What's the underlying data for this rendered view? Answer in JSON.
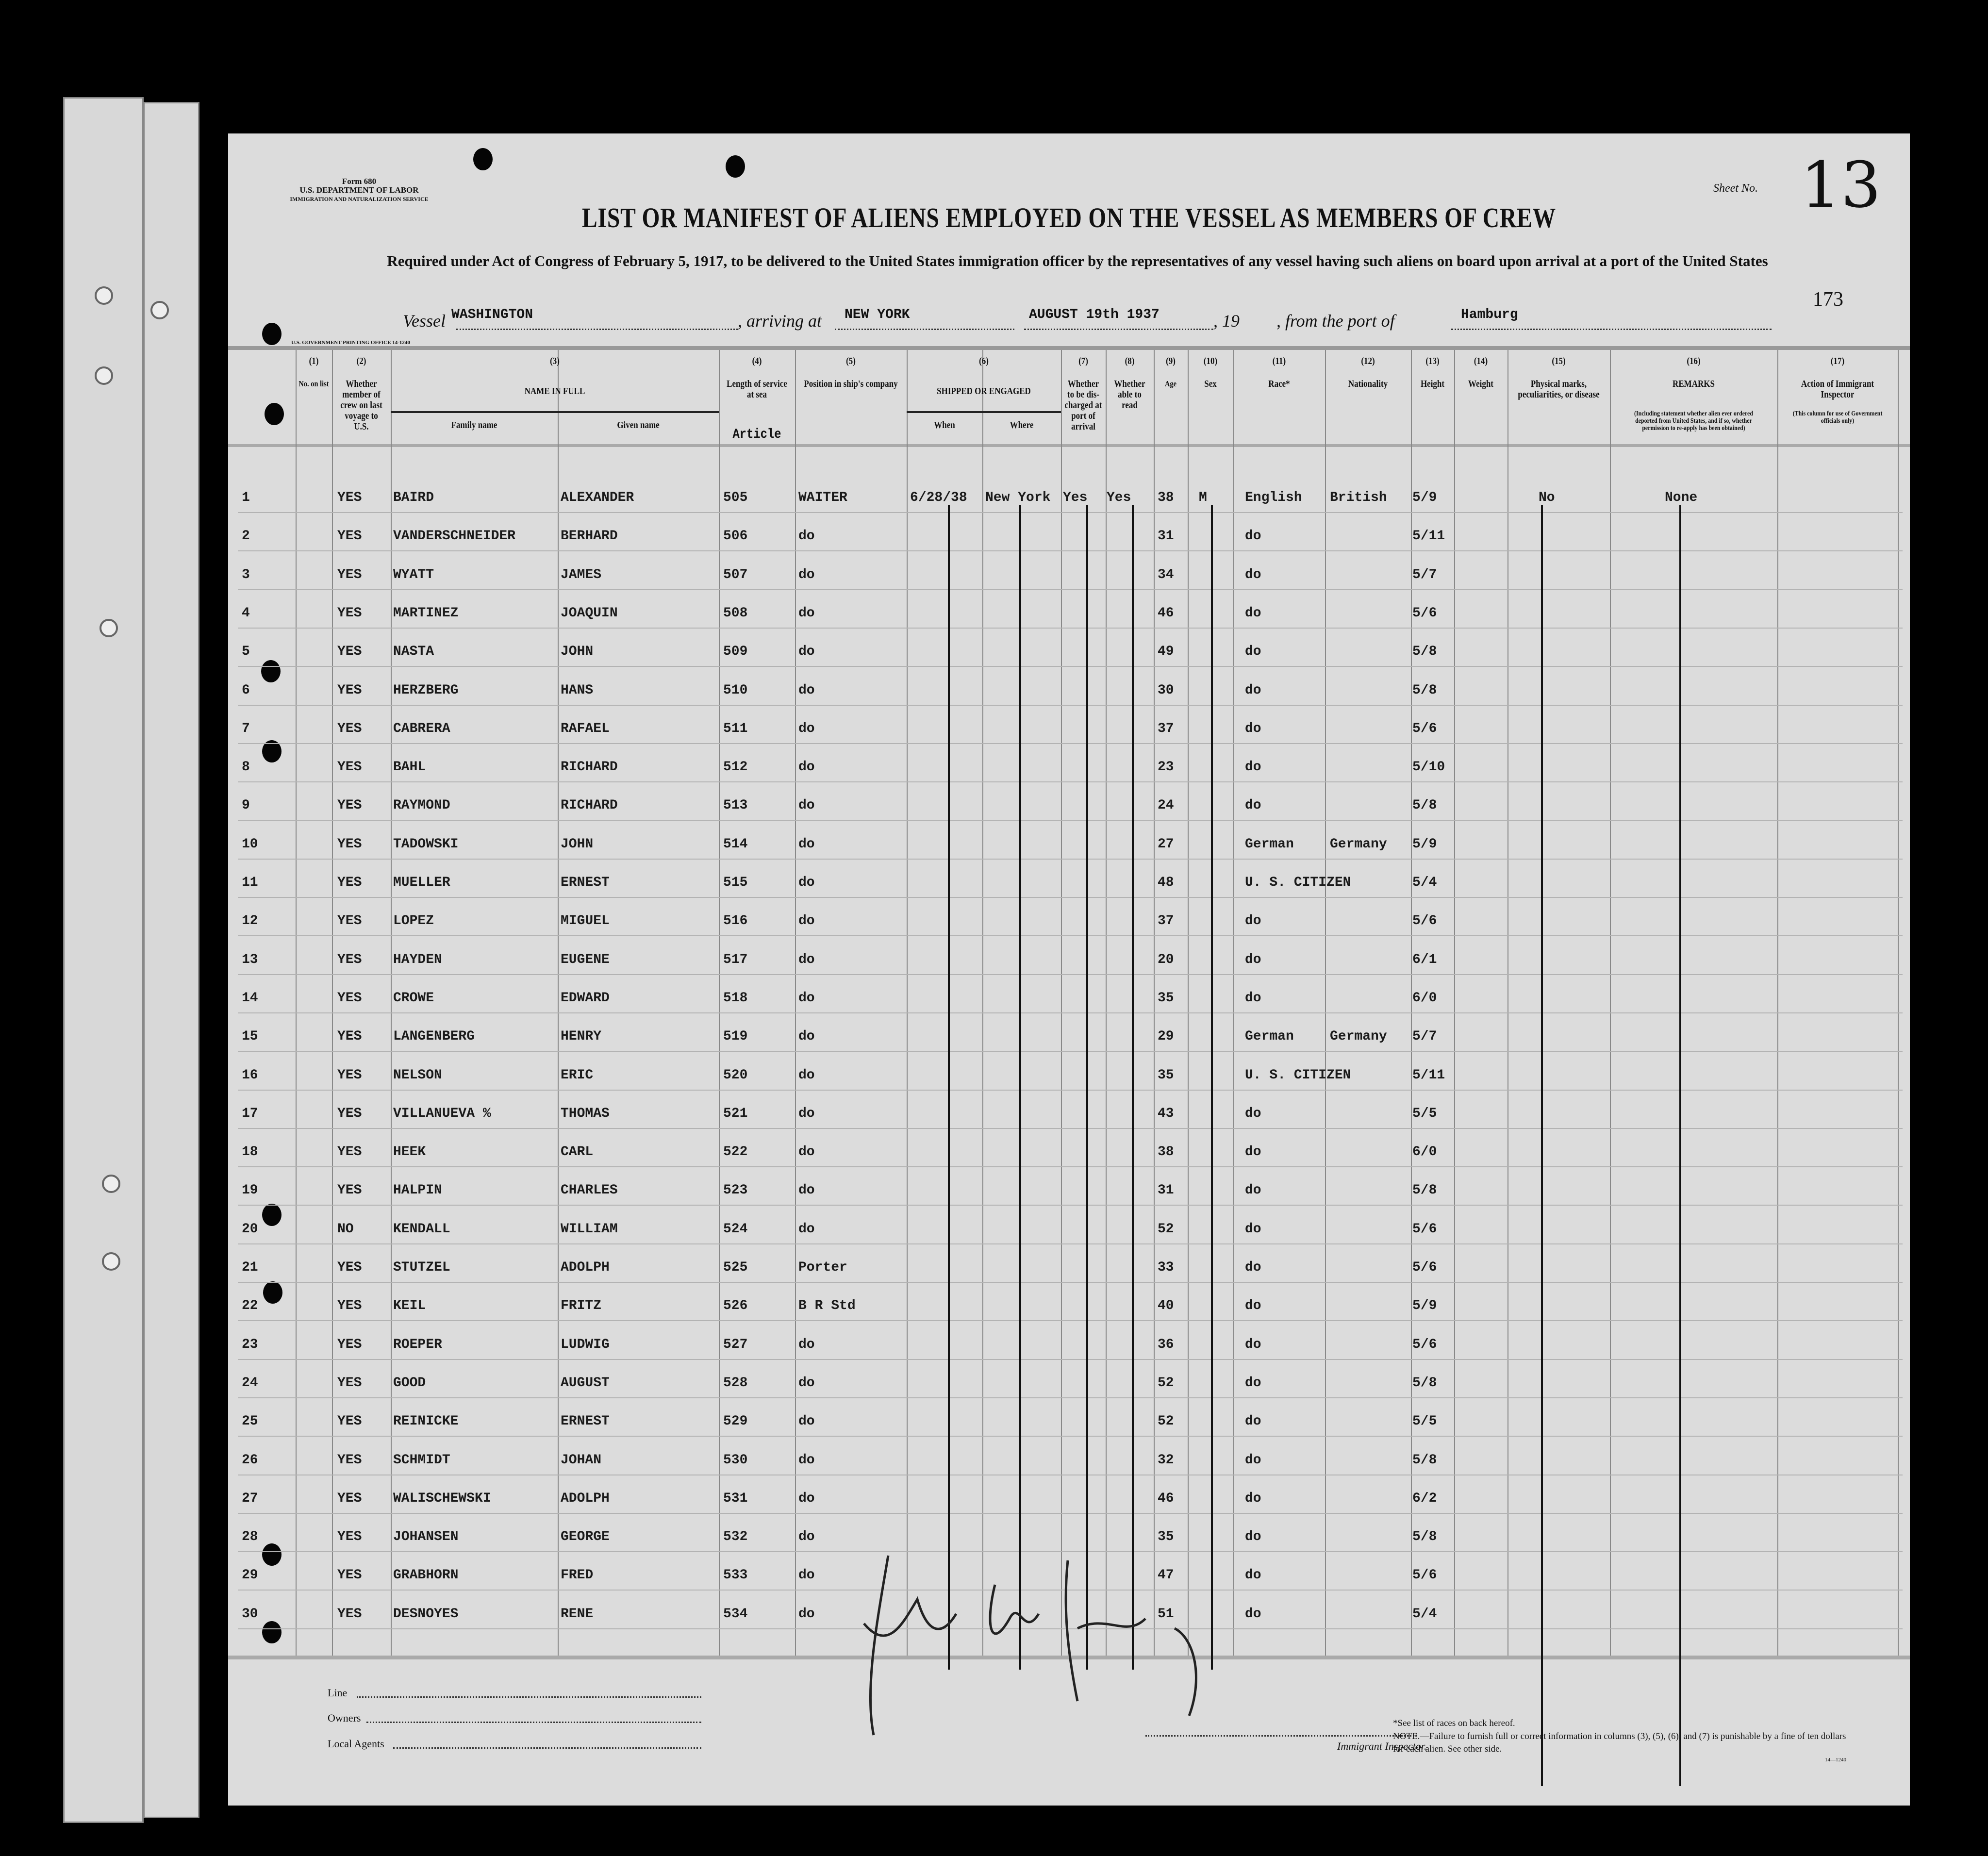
{
  "form": {
    "form_no": "Form 680",
    "department": "U.S. DEPARTMENT OF LABOR",
    "service": "IMMIGRATION AND NATURALIZATION SERVICE",
    "printing_office": "U.S. GOVERNMENT PRINTING OFFICE   14-1240",
    "title": "LIST OR MANIFEST OF ALIENS EMPLOYED ON THE VESSEL AS MEMBERS OF CREW",
    "subtitle": "Required under Act of Congress of February 5, 1917, to be delivered to the United States immigration officer by the representatives of any vessel having such aliens on board upon arrival at a port of the United States",
    "sheet_label": "Sheet No.",
    "sheet_no": "13",
    "stamp_no": "173"
  },
  "voyage": {
    "vessel_label": "Vessel",
    "vessel": "WASHINGTON",
    "arriving_label": ", arriving at",
    "arriving": "NEW YORK",
    "date": "AUGUST 19th 1937",
    "year_label": ", 19",
    "from_label": ", from the port of",
    "from_port": "Hamburg"
  },
  "columns": [
    {
      "num": "(1)",
      "label": "No. on list"
    },
    {
      "num": "(2)",
      "label": "Whether member of crew on last voyage to U.S."
    },
    {
      "num": "(3)",
      "label": "NAME IN FULL",
      "sub": [
        "Family name",
        "Given name"
      ]
    },
    {
      "num": "(4)",
      "label": "Length of service at sea",
      "extra": "Article"
    },
    {
      "num": "(5)",
      "label": "Position in ship's company"
    },
    {
      "num": "(6)",
      "label": "SHIPPED OR ENGAGED",
      "sub": [
        "When",
        "Where"
      ]
    },
    {
      "num": "(7)",
      "label": "Whether to be dis-charged at port of arrival"
    },
    {
      "num": "(8)",
      "label": "Whether able to read"
    },
    {
      "num": "(9)",
      "label": "Age"
    },
    {
      "num": "(10)",
      "label": "Sex"
    },
    {
      "num": "(11)",
      "label": "Race*"
    },
    {
      "num": "(12)",
      "label": "Nationality"
    },
    {
      "num": "(13)",
      "label": "Height"
    },
    {
      "num": "(14)",
      "label": "Weight"
    },
    {
      "num": "(15)",
      "label": "Physical marks, peculiarities, or disease"
    },
    {
      "num": "(16)",
      "label": "REMARKS",
      "note": "(Including statement whether alien ever ordered deported from United States, and if so, whether permission to re-apply has been obtained)"
    },
    {
      "num": "(17)",
      "label": "Action of Immigrant Inspector",
      "note": "(This column for use of Government officials only)"
    }
  ],
  "rows": [
    [
      "1",
      "YES",
      "BAIRD",
      "ALEXANDER",
      "505",
      "WAITER",
      "6/28/38",
      "New York",
      "Yes",
      "Yes",
      "38",
      "M",
      "English",
      "British",
      "5/9",
      "",
      "No",
      "None"
    ],
    [
      "2",
      "YES",
      "VANDERSCHNEIDER",
      "BERHARD",
      "506",
      "do",
      "",
      "",
      "",
      "",
      "31",
      "",
      "do",
      "",
      "5/11",
      "",
      "",
      ""
    ],
    [
      "3",
      "YES",
      "WYATT",
      "JAMES",
      "507",
      "do",
      "",
      "",
      "",
      "",
      "34",
      "",
      "do",
      "",
      "5/7",
      "",
      "",
      ""
    ],
    [
      "4",
      "YES",
      "MARTINEZ",
      "JOAQUIN",
      "508",
      "do",
      "",
      "",
      "",
      "",
      "46",
      "",
      "do",
      "",
      "5/6",
      "",
      "",
      ""
    ],
    [
      "5",
      "YES",
      "NASTA",
      "JOHN",
      "509",
      "do",
      "",
      "",
      "",
      "",
      "49",
      "",
      "do",
      "",
      "5/8",
      "",
      "",
      ""
    ],
    [
      "6",
      "YES",
      "HERZBERG",
      "HANS",
      "510",
      "do",
      "",
      "",
      "",
      "",
      "30",
      "",
      "do",
      "",
      "5/8",
      "",
      "",
      ""
    ],
    [
      "7",
      "YES",
      "CABRERA",
      "RAFAEL",
      "511",
      "do",
      "",
      "",
      "",
      "",
      "37",
      "",
      "do",
      "",
      "5/6",
      "",
      "",
      ""
    ],
    [
      "8",
      "YES",
      "BAHL",
      "RICHARD",
      "512",
      "do",
      "",
      "",
      "",
      "",
      "23",
      "",
      "do",
      "",
      "5/10",
      "",
      "",
      ""
    ],
    [
      "9",
      "YES",
      "RAYMOND",
      "RICHARD",
      "513",
      "do",
      "",
      "",
      "",
      "",
      "24",
      "",
      "do",
      "",
      "5/8",
      "",
      "",
      ""
    ],
    [
      "10",
      "YES",
      "TADOWSKI",
      "JOHN",
      "514",
      "do",
      "",
      "",
      "",
      "",
      "27",
      "",
      "German",
      "Germany",
      "5/9",
      "",
      "",
      ""
    ],
    [
      "11",
      "YES",
      "MUELLER",
      "ERNEST",
      "515",
      "do",
      "",
      "",
      "",
      "",
      "48",
      "",
      "U. S. CITIZEN",
      "",
      "5/4",
      "",
      "",
      ""
    ],
    [
      "12",
      "YES",
      "LOPEZ",
      "MIGUEL",
      "516",
      "do",
      "",
      "",
      "",
      "",
      "37",
      "",
      "do",
      "",
      "5/6",
      "",
      "",
      ""
    ],
    [
      "13",
      "YES",
      "HAYDEN",
      "EUGENE",
      "517",
      "do",
      "",
      "",
      "",
      "",
      "20",
      "",
      "do",
      "",
      "6/1",
      "",
      "",
      ""
    ],
    [
      "14",
      "YES",
      "CROWE",
      "EDWARD",
      "518",
      "do",
      "",
      "",
      "",
      "",
      "35",
      "",
      "do",
      "",
      "6/0",
      "",
      "",
      ""
    ],
    [
      "15",
      "YES",
      "LANGENBERG",
      "HENRY",
      "519",
      "do",
      "",
      "",
      "",
      "",
      "29",
      "",
      "German",
      "Germany",
      "5/7",
      "",
      "",
      ""
    ],
    [
      "16",
      "YES",
      "NELSON",
      "ERIC",
      "520",
      "do",
      "",
      "",
      "",
      "",
      "35",
      "",
      "U. S. CITIZEN",
      "",
      "5/11",
      "",
      "",
      ""
    ],
    [
      "17",
      "YES",
      "VILLANUEVA %",
      "THOMAS",
      "521",
      "do",
      "",
      "",
      "",
      "",
      "43",
      "",
      "do",
      "",
      "5/5",
      "",
      "",
      ""
    ],
    [
      "18",
      "YES",
      "HEEK",
      "CARL",
      "522",
      "do",
      "",
      "",
      "",
      "",
      "38",
      "",
      "do",
      "",
      "6/0",
      "",
      "",
      ""
    ],
    [
      "19",
      "YES",
      "HALPIN",
      "CHARLES",
      "523",
      "do",
      "",
      "",
      "",
      "",
      "31",
      "",
      "do",
      "",
      "5/8",
      "",
      "",
      ""
    ],
    [
      "20",
      "NO",
      "KENDALL",
      "WILLIAM",
      "524",
      "do",
      "",
      "",
      "",
      "",
      "52",
      "",
      "do",
      "",
      "5/6",
      "",
      "",
      ""
    ],
    [
      "21",
      "YES",
      "STUTZEL",
      "ADOLPH",
      "525",
      "Porter",
      "",
      "",
      "",
      "",
      "33",
      "",
      "do",
      "",
      "5/6",
      "",
      "",
      ""
    ],
    [
      "22",
      "YES",
      "KEIL",
      "FRITZ",
      "526",
      "B R Std",
      "",
      "",
      "",
      "",
      "40",
      "",
      "do",
      "",
      "5/9",
      "",
      "",
      ""
    ],
    [
      "23",
      "YES",
      "ROEPER",
      "LUDWIG",
      "527",
      "do",
      "",
      "",
      "",
      "",
      "36",
      "",
      "do",
      "",
      "5/6",
      "",
      "",
      ""
    ],
    [
      "24",
      "YES",
      "GOOD",
      "AUGUST",
      "528",
      "do",
      "",
      "",
      "",
      "",
      "52",
      "",
      "do",
      "",
      "5/8",
      "",
      "",
      ""
    ],
    [
      "25",
      "YES",
      "REINICKE",
      "ERNEST",
      "529",
      "do",
      "",
      "",
      "",
      "",
      "52",
      "",
      "do",
      "",
      "5/5",
      "",
      "",
      ""
    ],
    [
      "26",
      "YES",
      "SCHMIDT",
      "JOHAN",
      "530",
      "do",
      "",
      "",
      "",
      "",
      "32",
      "",
      "do",
      "",
      "5/8",
      "",
      "",
      ""
    ],
    [
      "27",
      "YES",
      "WALISCHEWSKI",
      "ADOLPH",
      "531",
      "do",
      "",
      "",
      "",
      "",
      "46",
      "",
      "do",
      "",
      "6/2",
      "",
      "",
      ""
    ],
    [
      "28",
      "YES",
      "JOHANSEN",
      "GEORGE",
      "532",
      "do",
      "",
      "",
      "",
      "",
      "35",
      "",
      "do",
      "",
      "5/8",
      "",
      "",
      ""
    ],
    [
      "29",
      "YES",
      "GRABHORN",
      "FRED",
      "533",
      "do",
      "",
      "",
      "",
      "",
      "47",
      "",
      "do",
      "",
      "5/6",
      "",
      "",
      ""
    ],
    [
      "30",
      "YES",
      "DESNOYES",
      "RENE",
      "534",
      "do",
      "",
      "",
      "",
      "",
      "51",
      "",
      "do",
      "",
      "5/4",
      "",
      "",
      ""
    ]
  ],
  "footer": {
    "line_label": "Line",
    "owners_label": "Owners",
    "agents_label": "Local Agents",
    "inspector_label": "Immigrant Inspector.",
    "races_note": "*See list of races on back hereof.",
    "note": "NOTE.—Failure to furnish full or correct information in columns (3), (5), (6), and (7) is punishable by a fine of ten dollars for each alien. See other side.",
    "print_code": "14—1240"
  }
}
